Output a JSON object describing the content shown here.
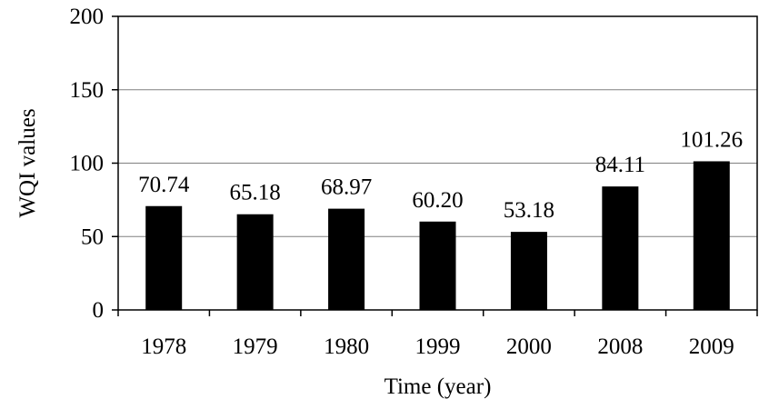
{
  "chart_data": {
    "type": "bar",
    "title": "",
    "xlabel": "Time (year)",
    "ylabel": "WQI values",
    "ylim": [
      0,
      200
    ],
    "yticks": [
      0,
      50,
      100,
      150,
      200
    ],
    "grid": true,
    "legend": "none",
    "bar_color": "#000000",
    "categories": [
      "1978",
      "1979",
      "1980",
      "1999",
      "2000",
      "2008",
      "2009"
    ],
    "values": [
      70.74,
      65.18,
      68.97,
      60.2,
      53.18,
      84.11,
      101.26
    ],
    "value_labels": [
      "70.74",
      "65.18",
      "68.97",
      "60.20",
      "53.18",
      "84.11",
      "101.26"
    ]
  }
}
